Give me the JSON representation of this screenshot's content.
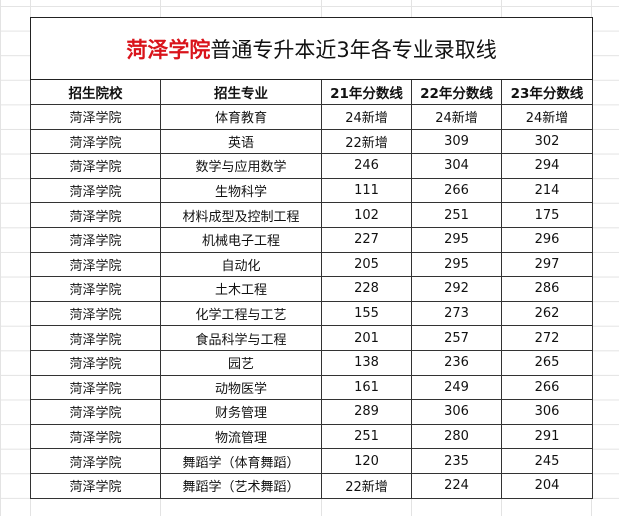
{
  "title": {
    "highlight": "菏泽学院",
    "rest": "普通专升本近3年各专业录取线",
    "highlight_color": "#d9141b"
  },
  "headers": [
    "招生院校",
    "招生专业",
    "21年分数线",
    "22年分数线",
    "23年分数线"
  ],
  "rows": [
    [
      "菏泽学院",
      "体育教育",
      "24新增",
      "24新增",
      "24新增"
    ],
    [
      "菏泽学院",
      "英语",
      "22新增",
      "309",
      "302"
    ],
    [
      "菏泽学院",
      "数学与应用数学",
      "246",
      "304",
      "294"
    ],
    [
      "菏泽学院",
      "生物科学",
      "111",
      "266",
      "214"
    ],
    [
      "菏泽学院",
      "材料成型及控制工程",
      "102",
      "251",
      "175"
    ],
    [
      "菏泽学院",
      "机械电子工程",
      "227",
      "295",
      "296"
    ],
    [
      "菏泽学院",
      "自动化",
      "205",
      "295",
      "297"
    ],
    [
      "菏泽学院",
      "土木工程",
      "228",
      "292",
      "286"
    ],
    [
      "菏泽学院",
      "化学工程与工艺",
      "155",
      "273",
      "262"
    ],
    [
      "菏泽学院",
      "食品科学与工程",
      "201",
      "257",
      "272"
    ],
    [
      "菏泽学院",
      "园艺",
      "138",
      "236",
      "265"
    ],
    [
      "菏泽学院",
      "动物医学",
      "161",
      "249",
      "266"
    ],
    [
      "菏泽学院",
      "财务管理",
      "289",
      "306",
      "306"
    ],
    [
      "菏泽学院",
      "物流管理",
      "251",
      "280",
      "291"
    ],
    [
      "菏泽学院",
      "舞蹈学（体育舞蹈）",
      "120",
      "235",
      "245"
    ],
    [
      "菏泽学院",
      "舞蹈学（艺术舞蹈）",
      "22新增",
      "224",
      "204"
    ]
  ]
}
